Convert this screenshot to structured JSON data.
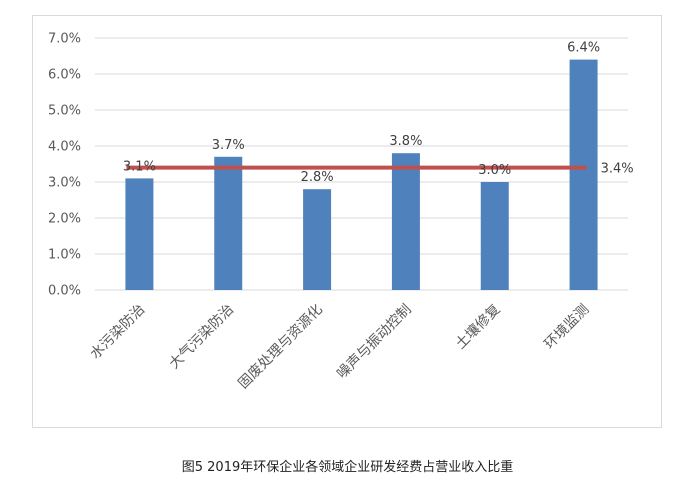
{
  "chart_data": {
    "type": "bar",
    "title": "",
    "xlabel": "",
    "ylabel": "",
    "categories": [
      "水污染防治",
      "大气污染防治",
      "固废处理与资源化",
      "噪声与振动控制",
      "土壤修复",
      "环境监测"
    ],
    "values": [
      3.1,
      3.7,
      2.8,
      3.8,
      3.0,
      6.4
    ],
    "value_labels": [
      "3.1%",
      "3.7%",
      "2.8%",
      "3.8%",
      "3.0%",
      "6.4%"
    ],
    "ylim": [
      0,
      7
    ],
    "y_ticks": [
      0,
      1,
      2,
      3,
      4,
      5,
      6,
      7
    ],
    "y_tick_labels": [
      "0.0%",
      "1.0%",
      "2.0%",
      "3.0%",
      "4.0%",
      "5.0%",
      "6.0%",
      "7.0%"
    ],
    "grid": true,
    "average_line": {
      "value": 3.4,
      "label": "3.4%"
    },
    "colors": {
      "bar": "#4f81bd",
      "average_line": "#c0504d",
      "grid": "#d9d9d9"
    }
  },
  "caption": "图5  2019年环保企业各领域企业研发经费占营业收入比重"
}
